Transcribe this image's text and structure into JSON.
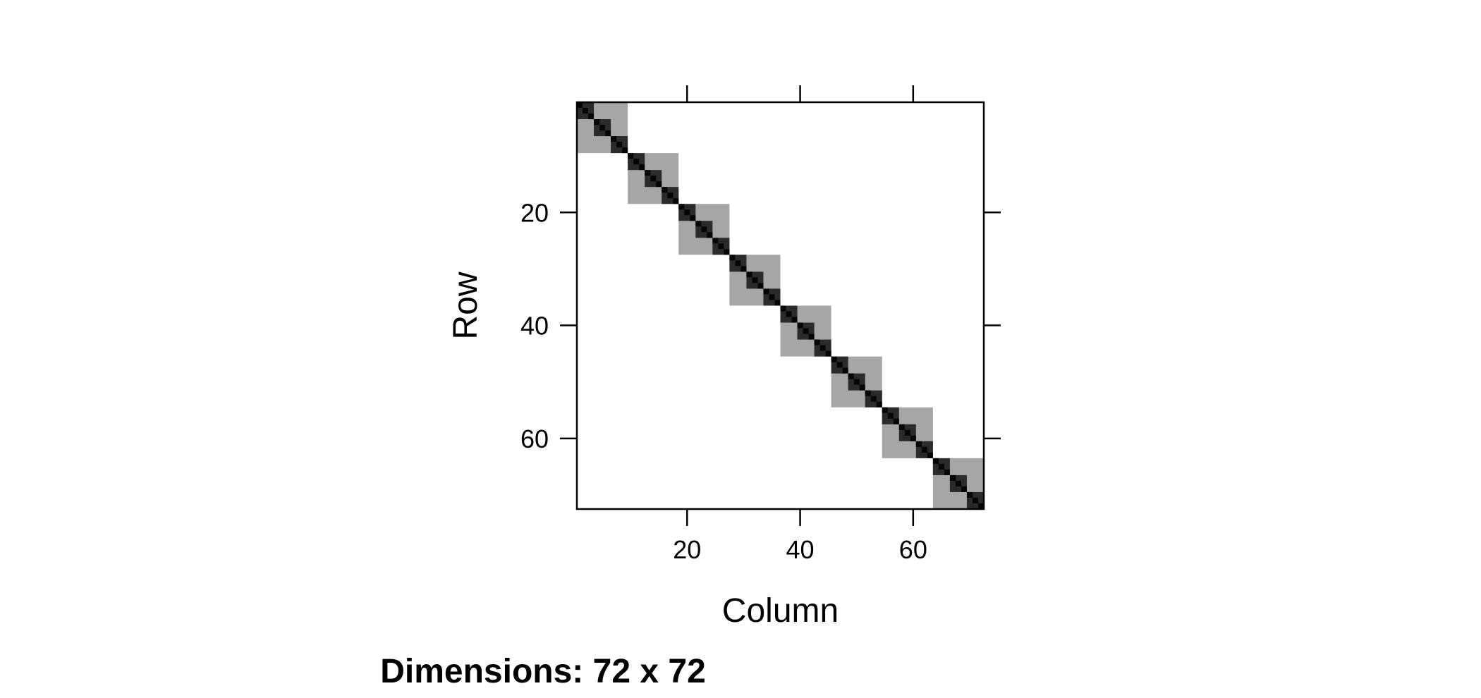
{
  "chart_data": {
    "type": "heatmap",
    "title": "",
    "xlabel": "Column",
    "ylabel": "Row",
    "caption": "Dimensions: 72 x 72",
    "nrow": 72,
    "ncol": 72,
    "xlim": [
      0.5,
      72.5
    ],
    "ylim": [
      72.5,
      0.5
    ],
    "x_ticks": [
      20,
      40,
      60
    ],
    "y_ticks": [
      20,
      40,
      60
    ],
    "x_tick_labels": [
      "20",
      "40",
      "60"
    ],
    "y_tick_labels": [
      "20",
      "40",
      "60"
    ],
    "blocks": {
      "outer_size": 9,
      "outer_count": 8,
      "outer_value": "nonzero (light)",
      "inner_size": 3,
      "inner_value": "nonzero (dark)",
      "diagonal_value": "nonzero (darkest)"
    },
    "colors": {
      "outer": "#a6a6a6",
      "inner": "#2b2b2b",
      "diagonal": "#050505",
      "background": "#ffffff",
      "frame": "#000000"
    }
  }
}
